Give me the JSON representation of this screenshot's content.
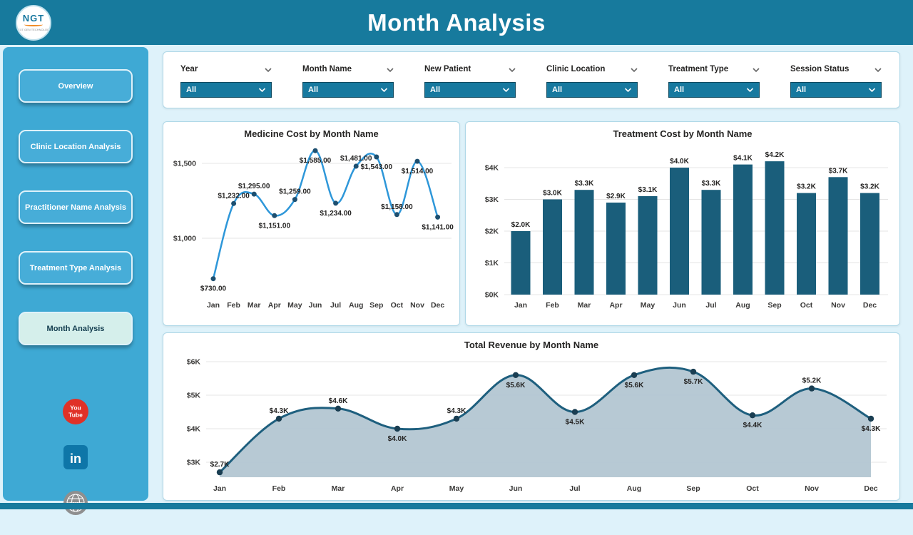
{
  "header": {
    "title": "Month Analysis",
    "logo_text": "NGT",
    "logo_subtext": "NEXT GEN TECHNOLOGY"
  },
  "sidebar": {
    "items": [
      {
        "label": "Overview",
        "active": false
      },
      {
        "label": "Clinic Location Analysis",
        "active": false
      },
      {
        "label": "Practitioner Name Analysis",
        "active": false
      },
      {
        "label": "Treatment Type Analysis",
        "active": false
      },
      {
        "label": "Month Analysis",
        "active": true
      }
    ],
    "social": [
      "YouTube",
      "LinkedIn",
      "Website"
    ]
  },
  "filters": [
    {
      "label": "Year",
      "value": "All"
    },
    {
      "label": "Month Name",
      "value": "All"
    },
    {
      "label": "New Patient",
      "value": "All"
    },
    {
      "label": "Clinic Location",
      "value": "All"
    },
    {
      "label": "Treatment Type",
      "value": "All"
    },
    {
      "label": "Session Status",
      "value": "All"
    }
  ],
  "colors": {
    "accent": "#177A9D",
    "sidebar": "#3EA9D4",
    "bar": "#1A5E7B",
    "medicine_line": "#2E97D9",
    "revenue_line": "#1E5F7E",
    "revenue_fill": "#B3C6D2"
  },
  "chart_data": [
    {
      "type": "line",
      "title": "Medicine Cost by Month Name",
      "categories": [
        "Jan",
        "Feb",
        "Mar",
        "Apr",
        "May",
        "Jun",
        "Jul",
        "Aug",
        "Sep",
        "Oct",
        "Nov",
        "Dec"
      ],
      "values": [
        730,
        1232,
        1295,
        1151,
        1259,
        1585,
        1234,
        1481,
        1543,
        1158,
        1514,
        1141
      ],
      "labels": [
        "$730.00",
        "$1,232.00",
        "$1,295.00",
        "$1,151.00",
        "$1,259.00",
        "$1,585.00",
        "$1,234.00",
        "$1,481.00",
        "$1,543.00",
        "$1,158.00",
        "$1,514.00",
        "$1,141.00"
      ],
      "y_ticks": [
        1000,
        1500
      ],
      "y_tick_labels": [
        "$1,000",
        "$1,500"
      ],
      "ylim": [
        650,
        1750
      ],
      "line_color": "#2E97D9",
      "marker_color": "#1D4F70"
    },
    {
      "type": "bar",
      "title": "Treatment Cost by Month Name",
      "categories": [
        "Jan",
        "Feb",
        "Mar",
        "Apr",
        "May",
        "Jun",
        "Jul",
        "Aug",
        "Sep",
        "Oct",
        "Nov",
        "Dec"
      ],
      "values": [
        2.0,
        3.0,
        3.3,
        2.9,
        3.1,
        4.0,
        3.3,
        4.1,
        4.2,
        3.2,
        3.7,
        3.2
      ],
      "labels": [
        "$2.0K",
        "$3.0K",
        "$3.3K",
        "$2.9K",
        "$3.1K",
        "$4.0K",
        "$3.3K",
        "$4.1K",
        "$4.2K",
        "$3.2K",
        "$3.7K",
        "$3.2K"
      ],
      "y_ticks": [
        0,
        1,
        2,
        3,
        4
      ],
      "y_tick_labels": [
        "$0K",
        "$1K",
        "$2K",
        "$3K",
        "$4K"
      ],
      "ylim": [
        0,
        4.6
      ],
      "bar_color": "#1A5E7B"
    },
    {
      "type": "area",
      "title": "Total Revenue by Month Name",
      "categories": [
        "Jan",
        "Feb",
        "Mar",
        "Apr",
        "May",
        "Jun",
        "Jul",
        "Aug",
        "Sep",
        "Oct",
        "Nov",
        "Dec"
      ],
      "values": [
        2.7,
        4.3,
        4.6,
        4.0,
        4.3,
        5.6,
        4.5,
        5.6,
        5.7,
        4.4,
        5.2,
        4.3
      ],
      "labels": [
        "$2.7K",
        "$4.3K",
        "$4.6K",
        "$4.0K",
        "$4.3K",
        "$5.6K",
        "$4.5K",
        "$5.6K",
        "$5.7K",
        "$4.4K",
        "$5.2K",
        "$4.3K"
      ],
      "y_ticks": [
        3,
        4,
        5,
        6
      ],
      "y_tick_labels": [
        "$3K",
        "$4K",
        "$5K",
        "$6K"
      ],
      "ylim": [
        2.6,
        6.2
      ],
      "fill_color": "#B3C6D2",
      "line_color": "#1E5F7E",
      "marker_color": "#1A3E52"
    }
  ]
}
